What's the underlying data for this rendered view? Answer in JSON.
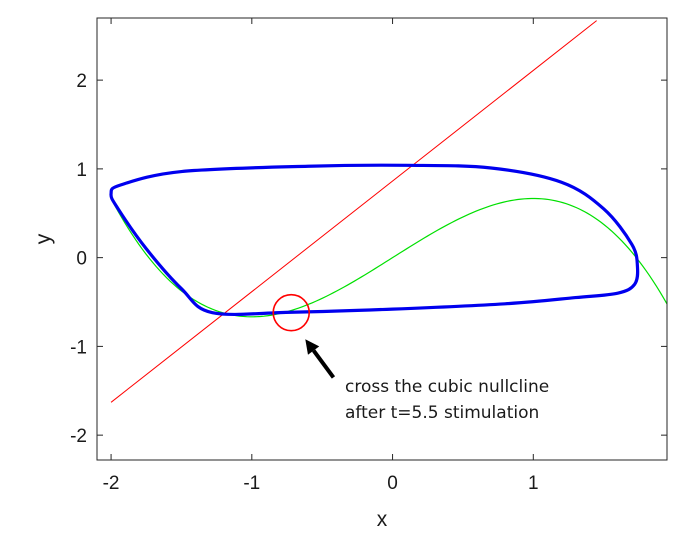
{
  "chart_data": {
    "type": "line",
    "title": "",
    "xlabel": "x",
    "ylabel": "y",
    "xlim": [
      -2.1,
      1.95
    ],
    "ylim": [
      -2.28,
      2.7
    ],
    "xticks": [
      -2,
      -1,
      0,
      1
    ],
    "yticks": [
      -2,
      -1,
      0,
      1,
      2
    ],
    "xtick_labels": [
      "-2",
      "-1",
      "0",
      "1"
    ],
    "ytick_labels": [
      "-2",
      "-1",
      "0",
      "1",
      "2"
    ],
    "grid": false,
    "legend": "none",
    "series": [
      {
        "kind": "linear-nullcline",
        "color": "#ff0000",
        "x": [
          -2.0,
          1.45
        ],
        "y": [
          -1.63,
          2.67
        ]
      },
      {
        "kind": "cubic-nullcline",
        "color": "#00e000",
        "x": [
          -2.0,
          -1.5,
          -1.0,
          -0.5,
          0.0,
          0.5,
          1.0,
          1.5,
          1.95
        ],
        "y": [
          0.667,
          -0.375,
          -0.667,
          -0.458,
          0.0,
          0.458,
          0.667,
          0.375,
          -0.6
        ]
      },
      {
        "kind": "limit-cycle-trajectory",
        "color": "#0000ee",
        "x": [
          -1.28,
          -0.72,
          0.0,
          0.8,
          1.3,
          1.6,
          1.72,
          1.74,
          1.7,
          1.5,
          1.2,
          0.7,
          0.1,
          -0.6,
          -1.5,
          -1.93,
          -2.0,
          -1.95,
          -1.75,
          -1.5,
          -1.28
        ],
        "y": [
          -0.62,
          -0.615,
          -0.58,
          -0.52,
          -0.45,
          -0.4,
          -0.3,
          -0.1,
          0.15,
          0.55,
          0.85,
          1.01,
          1.04,
          1.03,
          0.97,
          0.82,
          0.72,
          0.55,
          0.1,
          -0.35,
          -0.62
        ]
      }
    ],
    "marker": {
      "kind": "circle",
      "color": "#ff0000",
      "center": [
        -0.72,
        -0.62
      ]
    },
    "annotation": {
      "lines": [
        "cross the cubic nullcline",
        "after t=5.5 stimulation"
      ],
      "arrow_from": [
        -0.42,
        -1.35
      ],
      "arrow_to": [
        -0.62,
        -0.92
      ]
    }
  }
}
